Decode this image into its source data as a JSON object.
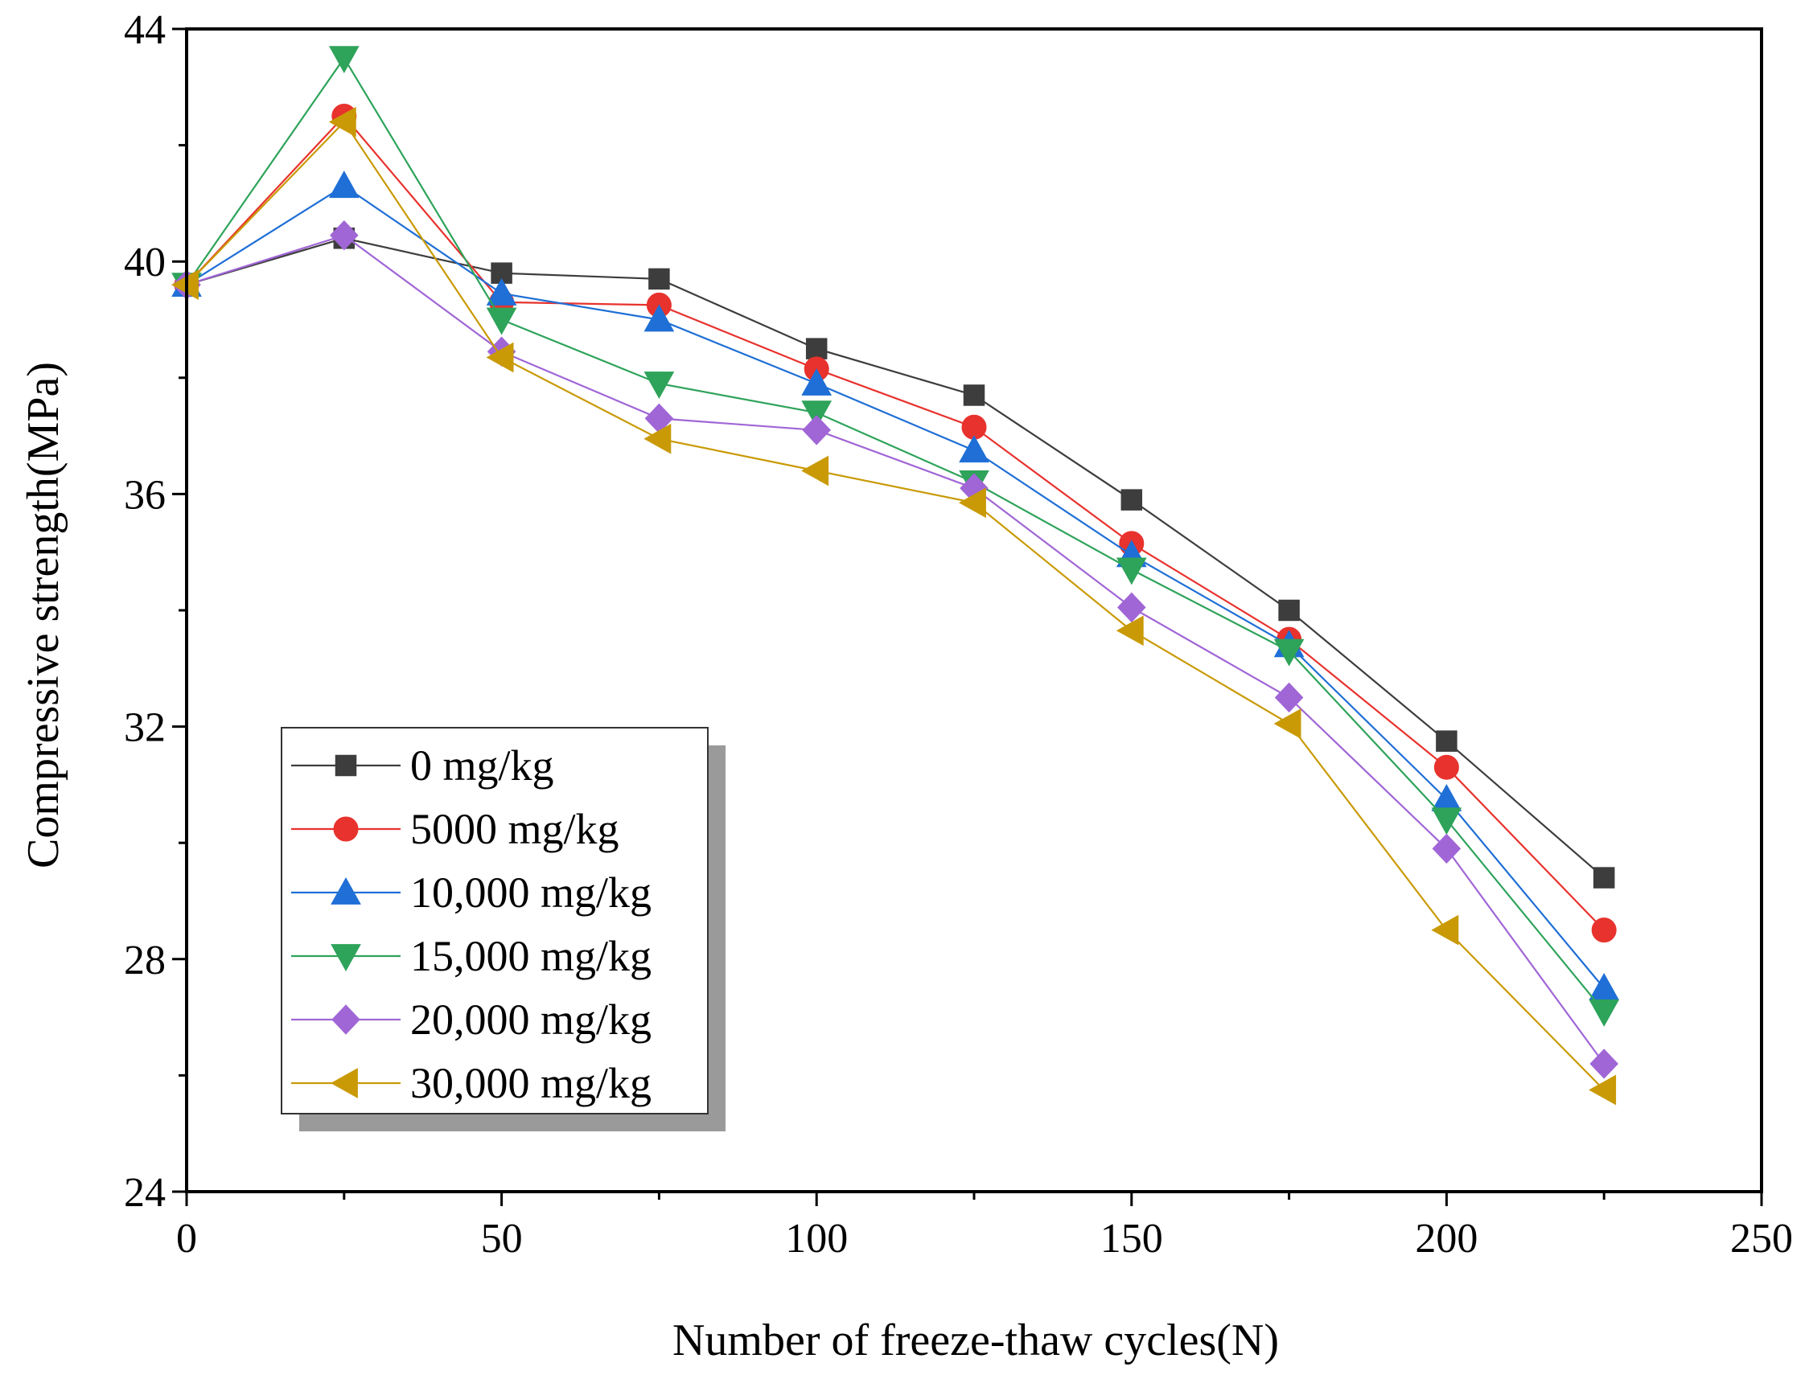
{
  "chart_data": {
    "type": "line",
    "title": "",
    "xlabel": "Number of freeze-thaw cycles(N)",
    "ylabel": "Compressive strength(MPa)",
    "xlim": [
      0,
      250
    ],
    "ylim": [
      24,
      44
    ],
    "xticks": [
      0,
      50,
      100,
      150,
      200,
      250
    ],
    "yticks": [
      24,
      28,
      32,
      36,
      40,
      44
    ],
    "x_tick_labels": [
      "0",
      "50",
      "100",
      "150",
      "200",
      "250"
    ],
    "y_tick_labels": [
      "24",
      "28",
      "32",
      "36",
      "40",
      "44"
    ],
    "legend_position": "lower-left",
    "x": [
      0,
      25,
      50,
      75,
      100,
      125,
      150,
      175,
      200,
      225
    ],
    "series": [
      {
        "name": "0 mg/kg",
        "marker": "square",
        "color": "#3d3d3d",
        "values": [
          39.6,
          40.4,
          39.8,
          39.7,
          38.5,
          37.7,
          35.9,
          34.0,
          31.75,
          29.4
        ]
      },
      {
        "name": "5000 mg/kg",
        "marker": "circle",
        "color": "#e8322d",
        "values": [
          39.6,
          42.5,
          39.3,
          39.25,
          38.15,
          37.15,
          35.15,
          33.5,
          31.3,
          28.5
        ]
      },
      {
        "name": "10,000 mg/kg",
        "marker": "triangle-up",
        "color": "#1f6fd6",
        "values": [
          39.6,
          41.3,
          39.45,
          39.0,
          37.9,
          36.75,
          34.95,
          33.4,
          30.75,
          27.5
        ]
      },
      {
        "name": "15,000 mg/kg",
        "marker": "triangle-down",
        "color": "#2ea35a",
        "values": [
          39.6,
          43.5,
          39.0,
          37.9,
          37.4,
          36.2,
          34.7,
          33.3,
          30.4,
          27.1
        ]
      },
      {
        "name": "20,000 mg/kg",
        "marker": "diamond",
        "color": "#a066d6",
        "values": [
          39.6,
          40.45,
          38.45,
          37.3,
          37.1,
          36.1,
          34.05,
          32.5,
          29.9,
          26.2
        ]
      },
      {
        "name": "30,000 mg/kg",
        "marker": "triangle-left",
        "color": "#c99a06",
        "values": [
          39.6,
          42.4,
          38.35,
          36.95,
          36.4,
          35.85,
          33.65,
          32.05,
          28.5,
          25.75
        ]
      }
    ]
  }
}
